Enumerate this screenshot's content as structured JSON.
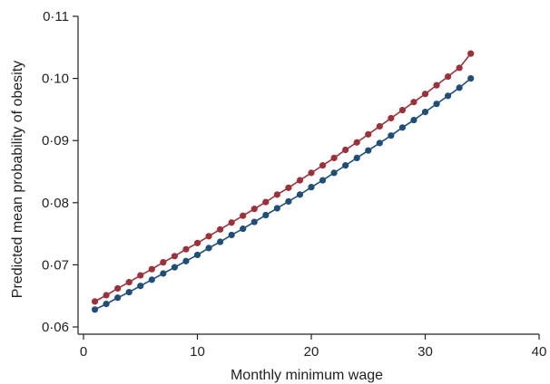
{
  "chart_data": {
    "type": "line",
    "title": "",
    "xlabel": "Monthly minimum wage",
    "ylabel": "Predicted mean probability of obesity",
    "xlim": [
      0,
      40
    ],
    "ylim": [
      0.06,
      0.11
    ],
    "x_ticks": [
      0,
      10,
      20,
      30,
      40
    ],
    "x_tick_labels": [
      "0",
      "10",
      "20",
      "30",
      "40"
    ],
    "y_ticks": [
      0.06,
      0.07,
      0.08,
      0.09,
      0.1,
      0.11
    ],
    "y_tick_labels": [
      "0·06",
      "0·07",
      "0·08",
      "0·09",
      "0·10",
      "0·11"
    ],
    "grid": false,
    "legend": "none",
    "x": [
      1,
      2,
      3,
      4,
      5,
      6,
      7,
      8,
      9,
      10,
      11,
      12,
      13,
      14,
      15,
      16,
      17,
      18,
      19,
      20,
      21,
      22,
      23,
      24,
      25,
      26,
      27,
      28,
      29,
      30,
      31,
      32,
      33,
      34
    ],
    "series": [
      {
        "color": "#9e3039",
        "values": [
          0.0641,
          0.0651,
          0.0662,
          0.0672,
          0.0683,
          0.0693,
          0.0704,
          0.0714,
          0.0725,
          0.0735,
          0.0746,
          0.0757,
          0.0768,
          0.0779,
          0.079,
          0.0801,
          0.0813,
          0.0824,
          0.0836,
          0.0848,
          0.086,
          0.0872,
          0.0885,
          0.0897,
          0.091,
          0.0923,
          0.0936,
          0.0949,
          0.0962,
          0.0975,
          0.0989,
          0.1003,
          0.1017,
          0.104
        ]
      },
      {
        "color": "#1f4e79",
        "values": [
          0.0628,
          0.0637,
          0.0647,
          0.0656,
          0.0666,
          0.0676,
          0.0686,
          0.0696,
          0.0706,
          0.0716,
          0.0727,
          0.0737,
          0.0748,
          0.0758,
          0.0769,
          0.078,
          0.0791,
          0.0802,
          0.0813,
          0.0825,
          0.0836,
          0.0848,
          0.086,
          0.0872,
          0.0884,
          0.0896,
          0.0908,
          0.0921,
          0.0933,
          0.0946,
          0.0959,
          0.0972,
          0.0985,
          0.1
        ]
      }
    ]
  }
}
